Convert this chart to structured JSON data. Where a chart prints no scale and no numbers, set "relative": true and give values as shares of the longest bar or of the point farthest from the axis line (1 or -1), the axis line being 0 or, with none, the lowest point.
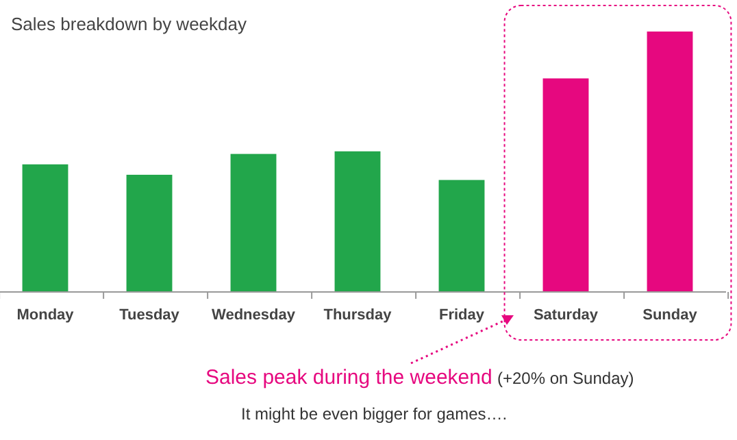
{
  "chart_data": {
    "type": "bar",
    "title": "Sales breakdown by weekday",
    "relative": true,
    "categories": [
      "Monday",
      "Tuesday",
      "Wednesday",
      "Thursday",
      "Friday",
      "Saturday",
      "Sunday"
    ],
    "values": [
      0.49,
      0.45,
      0.53,
      0.54,
      0.43,
      0.82,
      1
    ],
    "colors": [
      "#22a64b",
      "#22a64b",
      "#22a64b",
      "#22a64b",
      "#22a64b",
      "#e6087f",
      "#e6087f"
    ],
    "annotations": [
      "Sales peak during the weekend",
      "(+20% on Sunday)",
      "It might be even bigger for games…."
    ]
  }
}
